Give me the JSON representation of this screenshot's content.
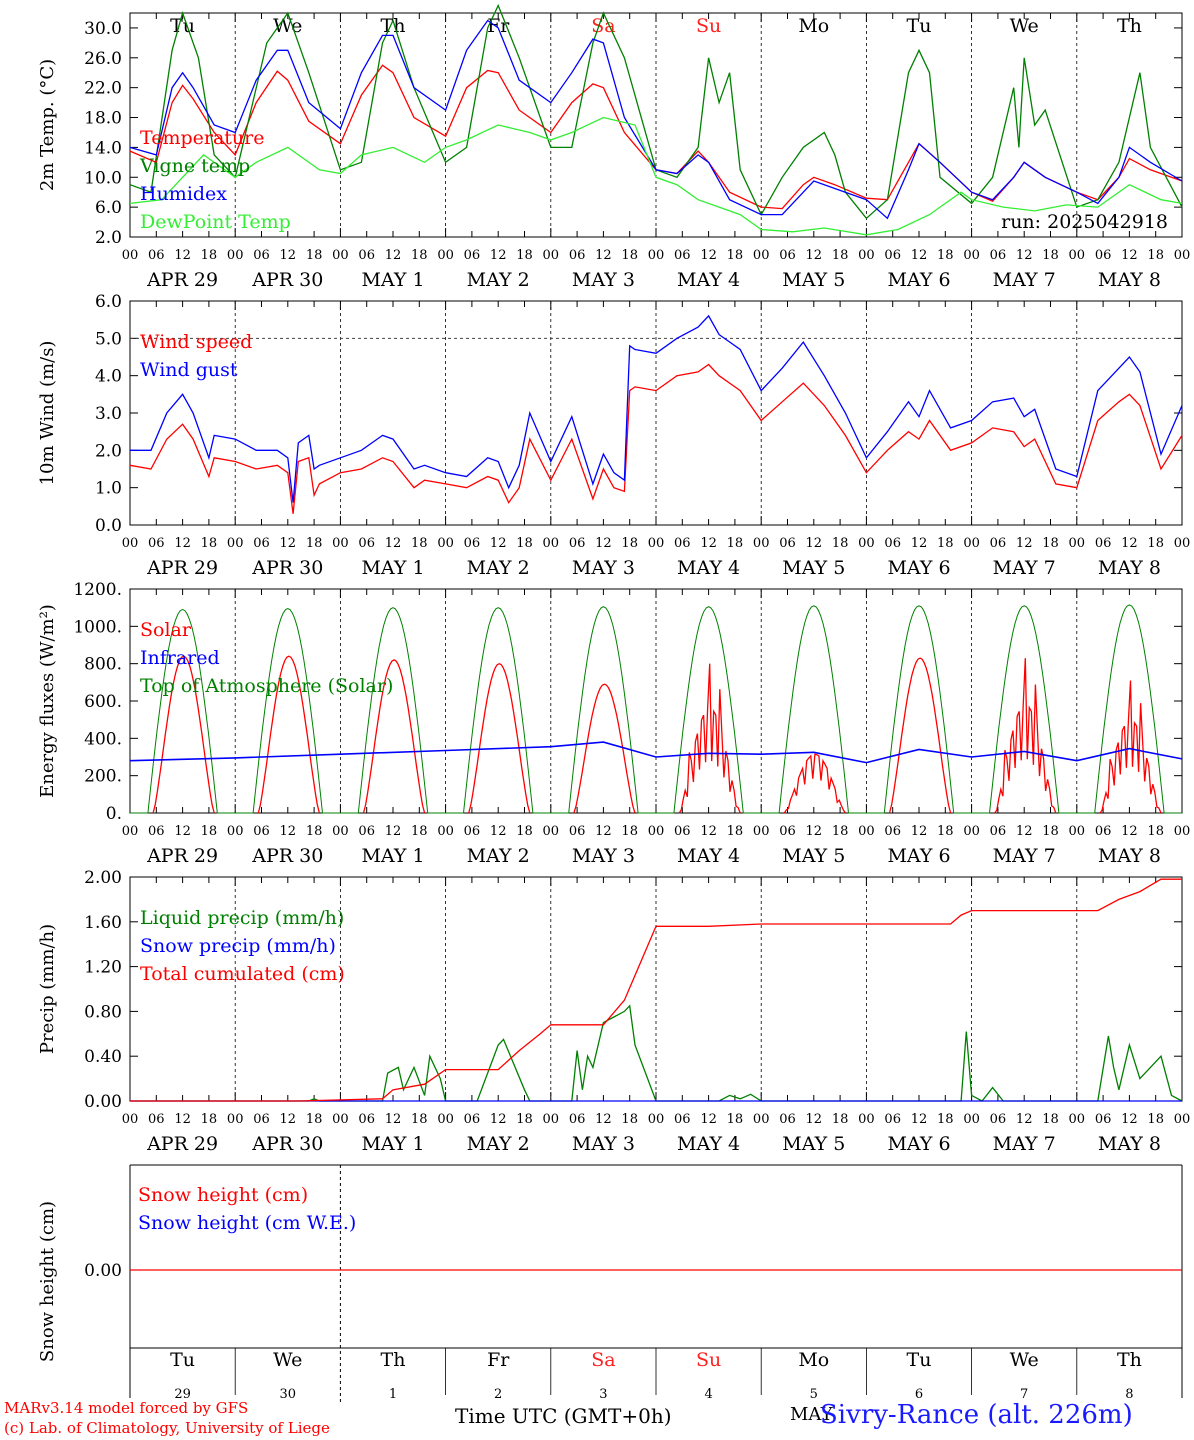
{
  "days": {
    "names": [
      "Tu",
      "We",
      "Th",
      "Fr",
      "Sa",
      "Su",
      "Mo",
      "Tu",
      "We",
      "Th"
    ],
    "weekend_color": "#ff2020",
    "weekend_index": [
      4,
      5
    ],
    "dates": [
      "APR 29",
      "APR 30",
      "MAY  1",
      "MAY  2",
      "MAY  3",
      "MAY  4",
      "MAY  5",
      "MAY  6",
      "MAY  7",
      "MAY  8"
    ],
    "day_numbers": [
      "29",
      "30",
      "1",
      "2",
      "3",
      "4",
      "5",
      "6",
      "7",
      "8"
    ],
    "hour_ticks": [
      "00",
      "06",
      "12",
      "18"
    ],
    "end_tick": "00"
  },
  "run_label": "run: 2025042918",
  "x_axis_title": "Time UTC (GMT+0h)",
  "bottom_month": "MAY",
  "station": "Sivry-Rance (alt. 226m)",
  "credits": [
    "MARv3.14 model forced by GFS",
    "(c) Lab. of Climatology, University of Liege"
  ],
  "chart_data": [
    {
      "type": "line",
      "ylabel": "2m Temp. (°C)",
      "ylim": [
        2.0,
        32.0
      ],
      "ticks": [
        "2.0",
        "6.0",
        "10.0",
        "14.0",
        "18.0",
        "22.0",
        "26.0",
        "30.0"
      ],
      "tick_values": [
        2,
        6,
        10,
        14,
        18,
        22,
        26,
        30
      ],
      "x_unit": "day index (0 = Apr 29 00 UTC)",
      "series": [
        {
          "name": "Temperature",
          "color": "#ff0000",
          "x": [
            0,
            0.25,
            0.4,
            0.5,
            0.6,
            0.8,
            1,
            1.2,
            1.4,
            1.5,
            1.7,
            2,
            2.2,
            2.4,
            2.5,
            2.7,
            3,
            3.2,
            3.4,
            3.5,
            3.7,
            4,
            4.2,
            4.4,
            4.5,
            4.7,
            5,
            5.2,
            5.4,
            5.5,
            5.7,
            6,
            6.2,
            6.4,
            6.5,
            6.7,
            7,
            7.2,
            7.4,
            7.5,
            7.7,
            8,
            8.2,
            8.4,
            8.5,
            8.7,
            9,
            9.2,
            9.4,
            9.5,
            9.7,
            10
          ],
          "values": [
            13.5,
            12,
            20,
            22.3,
            20.5,
            16,
            13,
            20,
            24.2,
            23,
            17.5,
            14.5,
            21,
            25,
            24,
            18,
            15.5,
            22,
            24.3,
            24,
            19,
            16,
            20,
            22.5,
            22,
            16,
            11,
            10.5,
            13.5,
            12,
            8,
            6,
            5.8,
            9,
            10,
            9,
            7.2,
            7,
            12,
            14.5,
            12,
            8,
            6.8,
            10,
            12,
            10,
            8,
            7,
            10,
            12.5,
            11,
            9.5
          ]
        },
        {
          "name": "Vigne temp",
          "color": "#008000",
          "x": [
            0,
            0.2,
            0.4,
            0.5,
            0.65,
            0.8,
            1,
            1.3,
            1.5,
            1.7,
            2,
            2.2,
            2.4,
            2.5,
            2.7,
            3,
            3.2,
            3.4,
            3.5,
            3.7,
            4,
            4.2,
            4.4,
            4.5,
            4.7,
            5,
            5.2,
            5.4,
            5.5,
            5.6,
            5.7,
            5.8,
            6,
            6.2,
            6.4,
            6.6,
            6.7,
            6.8,
            7,
            7.2,
            7.4,
            7.5,
            7.6,
            7.7,
            8,
            8.2,
            8.4,
            8.45,
            8.5,
            8.6,
            8.7,
            9,
            9.2,
            9.4,
            9.5,
            9.6,
            9.7,
            10
          ],
          "values": [
            9,
            8,
            27,
            32,
            26,
            13,
            10,
            28,
            32,
            24,
            11,
            12,
            28,
            31,
            22,
            12,
            14,
            30,
            33,
            26,
            14,
            14,
            28,
            32,
            26,
            11,
            10,
            14,
            26,
            20,
            24,
            11,
            5,
            10,
            14,
            16,
            13,
            8,
            4.5,
            7,
            24,
            27,
            24,
            10,
            6.5,
            10,
            22,
            14,
            26,
            17,
            19,
            6,
            7,
            12,
            18,
            24,
            14,
            6
          ]
        },
        {
          "name": "Humidex",
          "color": "#0000ff",
          "x": [
            0,
            0.25,
            0.4,
            0.5,
            0.6,
            0.8,
            1,
            1.2,
            1.4,
            1.5,
            1.7,
            2,
            2.2,
            2.4,
            2.5,
            2.7,
            3,
            3.2,
            3.4,
            3.5,
            3.7,
            4,
            4.2,
            4.4,
            4.5,
            4.7,
            5,
            5.2,
            5.4,
            5.5,
            5.7,
            6,
            6.2,
            6.4,
            6.5,
            6.7,
            7,
            7.2,
            7.4,
            7.5,
            7.7,
            8,
            8.2,
            8.4,
            8.5,
            8.7,
            9,
            9.2,
            9.4,
            9.5,
            9.7,
            10
          ],
          "values": [
            14,
            13,
            22,
            24,
            22,
            17,
            16,
            23,
            27,
            27,
            20,
            16.5,
            24,
            29,
            29,
            22,
            19,
            27,
            31,
            30,
            23,
            20,
            24,
            28.5,
            28,
            18,
            11,
            10.5,
            13,
            12,
            7,
            5,
            5,
            8,
            9.5,
            8.5,
            7,
            4.5,
            11,
            14.5,
            12,
            8,
            7,
            10,
            12,
            10,
            8,
            6.5,
            10,
            14,
            12,
            9.5
          ]
        },
        {
          "name": "DewPoint Temp",
          "color": "#33ee33",
          "x": [
            0,
            0.3,
            0.5,
            0.7,
            0.9,
            1,
            1.2,
            1.5,
            1.8,
            2,
            2.2,
            2.5,
            2.8,
            3,
            3.2,
            3.5,
            3.8,
            4,
            4.2,
            4.5,
            4.8,
            5,
            5.2,
            5.4,
            5.6,
            5.8,
            6,
            6.3,
            6.6,
            7,
            7.3,
            7.6,
            7.9,
            8,
            8.3,
            8.6,
            8.9,
            9.2,
            9.5,
            9.8,
            10
          ],
          "values": [
            6.5,
            7,
            10,
            13,
            11,
            10,
            12,
            14,
            11,
            10.5,
            13,
            14,
            12,
            14,
            15,
            17,
            16,
            15,
            16,
            18,
            17,
            10,
            9,
            7,
            6,
            5,
            3,
            2.7,
            3.2,
            2.3,
            3,
            5,
            8,
            7,
            6,
            5.5,
            6.3,
            6,
            9,
            7,
            6.5
          ]
        }
      ]
    },
    {
      "type": "line",
      "ylabel": "10m Wind (m/s)",
      "ylim": [
        0.0,
        6.0
      ],
      "ticks": [
        "0.0",
        "1.0",
        "2.0",
        "3.0",
        "4.0",
        "5.0",
        "6.0"
      ],
      "tick_values": [
        0,
        1,
        2,
        3,
        4,
        5,
        6
      ],
      "reference_line": 5.0,
      "series": [
        {
          "name": "Wind speed",
          "color": "#ff0000",
          "x": [
            0,
            0.2,
            0.35,
            0.5,
            0.6,
            0.75,
            0.8,
            1,
            1.2,
            1.4,
            1.5,
            1.55,
            1.6,
            1.7,
            1.75,
            1.8,
            2,
            2.2,
            2.4,
            2.5,
            2.7,
            2.8,
            3,
            3.2,
            3.4,
            3.5,
            3.6,
            3.7,
            3.8,
            4,
            4.2,
            4.4,
            4.5,
            4.6,
            4.7,
            4.75,
            4.8,
            5,
            5.2,
            5.4,
            5.5,
            5.6,
            5.8,
            6,
            6.2,
            6.4,
            6.6,
            6.8,
            7,
            7.2,
            7.4,
            7.5,
            7.6,
            7.8,
            8,
            8.2,
            8.4,
            8.5,
            8.6,
            8.8,
            9,
            9.2,
            9.4,
            9.5,
            9.6,
            9.8,
            10
          ],
          "values": [
            1.6,
            1.5,
            2.3,
            2.7,
            2.3,
            1.3,
            1.8,
            1.7,
            1.5,
            1.6,
            1.4,
            0.3,
            1.7,
            1.8,
            0.8,
            1.1,
            1.4,
            1.5,
            1.8,
            1.7,
            1.0,
            1.2,
            1.1,
            1.0,
            1.3,
            1.2,
            0.6,
            1.0,
            2.3,
            1.2,
            2.3,
            0.7,
            1.5,
            1.0,
            0.9,
            3.6,
            3.7,
            3.6,
            4.0,
            4.1,
            4.3,
            4.0,
            3.6,
            2.8,
            3.3,
            3.8,
            3.2,
            2.4,
            1.4,
            2.0,
            2.5,
            2.3,
            2.8,
            2.0,
            2.2,
            2.6,
            2.5,
            2.1,
            2.3,
            1.1,
            1.0,
            2.8,
            3.3,
            3.5,
            3.2,
            1.5,
            2.4
          ]
        },
        {
          "name": "Wind gust",
          "color": "#0000ff",
          "x": [
            0,
            0.2,
            0.35,
            0.5,
            0.6,
            0.75,
            0.8,
            1,
            1.2,
            1.4,
            1.5,
            1.55,
            1.6,
            1.7,
            1.75,
            1.8,
            2,
            2.2,
            2.4,
            2.5,
            2.7,
            2.8,
            3,
            3.2,
            3.4,
            3.5,
            3.6,
            3.7,
            3.8,
            4,
            4.2,
            4.4,
            4.5,
            4.6,
            4.7,
            4.75,
            4.8,
            5,
            5.2,
            5.4,
            5.5,
            5.6,
            5.8,
            6,
            6.2,
            6.4,
            6.6,
            6.8,
            7,
            7.2,
            7.4,
            7.5,
            7.6,
            7.8,
            8,
            8.2,
            8.4,
            8.5,
            8.6,
            8.8,
            9,
            9.2,
            9.4,
            9.5,
            9.6,
            9.8,
            10
          ],
          "values": [
            2.0,
            2.0,
            3.0,
            3.5,
            3.0,
            1.8,
            2.4,
            2.3,
            2.0,
            2.0,
            1.8,
            0.6,
            2.2,
            2.4,
            1.5,
            1.6,
            1.8,
            2.0,
            2.4,
            2.3,
            1.5,
            1.6,
            1.4,
            1.3,
            1.8,
            1.7,
            1.0,
            1.6,
            3.0,
            1.7,
            2.9,
            1.1,
            1.9,
            1.4,
            1.2,
            4.8,
            4.7,
            4.6,
            5.0,
            5.3,
            5.6,
            5.1,
            4.7,
            3.6,
            4.2,
            4.9,
            4.0,
            3.0,
            1.8,
            2.5,
            3.3,
            2.9,
            3.6,
            2.6,
            2.8,
            3.3,
            3.4,
            2.9,
            3.1,
            1.5,
            1.3,
            3.6,
            4.2,
            4.5,
            4.1,
            1.9,
            3.2
          ]
        }
      ]
    },
    {
      "type": "line",
      "ylabel": "Energy fluxes (W/m²)",
      "ylim": [
        0,
        1200
      ],
      "ticks": [
        "0.",
        "200.",
        "400.",
        "600.",
        "800.",
        "1000.",
        "1200."
      ],
      "tick_values": [
        0,
        200,
        400,
        600,
        800,
        1000,
        1200
      ],
      "series": [
        {
          "name": "Solar",
          "color": "#ff0000",
          "daily_peak": [
            840,
            840,
            820,
            800,
            690,
            800,
            370,
            830,
            830,
            710
          ],
          "daily_shape": [
            "smooth",
            "smooth",
            "smooth",
            "smooth",
            "smooth",
            "spiky",
            "broken",
            "smooth",
            "spiky",
            "spiky"
          ]
        },
        {
          "name": "Infrared",
          "color": "#0000ff",
          "x": [
            0,
            1,
            2,
            3,
            4,
            4.5,
            5,
            5.5,
            6,
            6.5,
            7,
            7.5,
            8,
            8.5,
            9,
            9.5,
            10
          ],
          "values": [
            280,
            295,
            315,
            335,
            355,
            380,
            300,
            320,
            315,
            325,
            270,
            340,
            300,
            330,
            280,
            345,
            290
          ]
        },
        {
          "name": "Top of Atmosphere (Solar)",
          "color": "#008000",
          "daily_peak": [
            1090,
            1095,
            1100,
            1100,
            1105,
            1105,
            1110,
            1110,
            1110,
            1115
          ]
        }
      ]
    },
    {
      "type": "line",
      "ylabel": "Precip (mm/h)",
      "ylim": [
        0.0,
        2.0
      ],
      "ticks": [
        "0.00",
        "0.40",
        "0.80",
        "1.20",
        "1.60",
        "2.00"
      ],
      "tick_values": [
        0,
        0.4,
        0.8,
        1.2,
        1.6,
        2.0
      ],
      "series": [
        {
          "name": "Liquid precip (mm/h)",
          "color": "#008000",
          "x": [
            0,
            1.7,
            1.75,
            1.8,
            2,
            2.4,
            2.45,
            2.55,
            2.6,
            2.7,
            2.8,
            2.85,
            2.95,
            3.0,
            3.3,
            3.5,
            3.55,
            3.75,
            3.8,
            4.2,
            4.25,
            4.3,
            4.35,
            4.4,
            4.5,
            4.6,
            4.7,
            4.75,
            4.8,
            5,
            5.6,
            5.7,
            5.8,
            5.9,
            6,
            7.9,
            7.95,
            8.0,
            8.1,
            8.2,
            8.3,
            9.2,
            9.3,
            9.35,
            9.4,
            9.5,
            9.6,
            9.7,
            9.8,
            9.9,
            10
          ],
          "values": [
            0,
            0,
            0.02,
            0,
            0,
            0,
            0.25,
            0.3,
            0.1,
            0.3,
            0.05,
            0.4,
            0.2,
            0,
            0,
            0.5,
            0.55,
            0.1,
            0,
            0,
            0.45,
            0.1,
            0.4,
            0.3,
            0.7,
            0.75,
            0.8,
            0.85,
            0.5,
            0,
            0,
            0.05,
            0.02,
            0.06,
            0,
            0,
            0.62,
            0.05,
            0,
            0.12,
            0,
            0,
            0.58,
            0.3,
            0.1,
            0.5,
            0.2,
            0.3,
            0.4,
            0.05,
            0
          ]
        },
        {
          "name": "Snow precip (mm/h)",
          "color": "#0000ff",
          "x": [
            0,
            10
          ],
          "values": [
            0,
            0
          ]
        },
        {
          "name": "Total cumulated (cm)",
          "color": "#ff0000",
          "x": [
            0,
            1.6,
            2.4,
            2.5,
            2.8,
            3.0,
            3.5,
            3.7,
            3.9,
            4.0,
            4.2,
            4.5,
            4.7,
            5.0,
            5.5,
            6.0,
            7.0,
            7.8,
            7.9,
            8.0,
            8.2,
            9.0,
            9.2,
            9.4,
            9.6,
            9.8,
            10
          ],
          "values": [
            0,
            0,
            0.02,
            0.1,
            0.15,
            0.28,
            0.28,
            0.45,
            0.6,
            0.68,
            0.68,
            0.68,
            0.9,
            1.56,
            1.56,
            1.58,
            1.58,
            1.58,
            1.66,
            1.7,
            1.7,
            1.7,
            1.7,
            1.8,
            1.87,
            1.98,
            1.98
          ]
        }
      ]
    },
    {
      "type": "line",
      "ylabel": "Snow height (cm)",
      "ticks": [
        "0.00"
      ],
      "series": [
        {
          "name": "Snow height (cm)",
          "color": "#ff0000",
          "x": [
            0,
            10
          ],
          "values": [
            0,
            0
          ]
        },
        {
          "name": "Snow height (cm W.E.)",
          "color": "#0000ff",
          "x": [
            0,
            10
          ],
          "values": [
            0,
            0
          ]
        }
      ]
    }
  ]
}
